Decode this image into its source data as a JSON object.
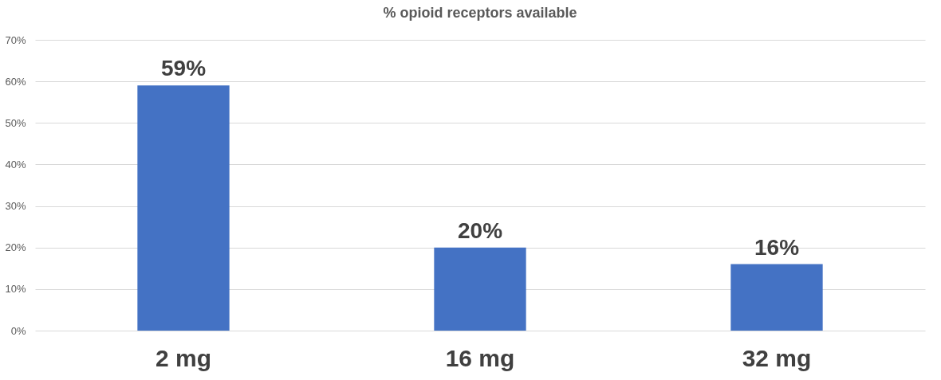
{
  "chart_data": {
    "type": "bar",
    "title": "% opioid receptors available",
    "categories": [
      "2 mg",
      "16 mg",
      "32 mg"
    ],
    "values": [
      59,
      20,
      16
    ],
    "value_labels": [
      "59%",
      "20%",
      "16%"
    ],
    "color": "#4472c4",
    "ylim": [
      0,
      70
    ],
    "yticks": [
      {
        "value": 0,
        "label": "0%"
      },
      {
        "value": 10,
        "label": "10%"
      },
      {
        "value": 20,
        "label": "20%"
      },
      {
        "value": 30,
        "label": "30%"
      },
      {
        "value": 40,
        "label": "40%"
      },
      {
        "value": 50,
        "label": "50%"
      },
      {
        "value": 60,
        "label": "60%"
      },
      {
        "value": 70,
        "label": "70%"
      }
    ],
    "grid": "y"
  }
}
